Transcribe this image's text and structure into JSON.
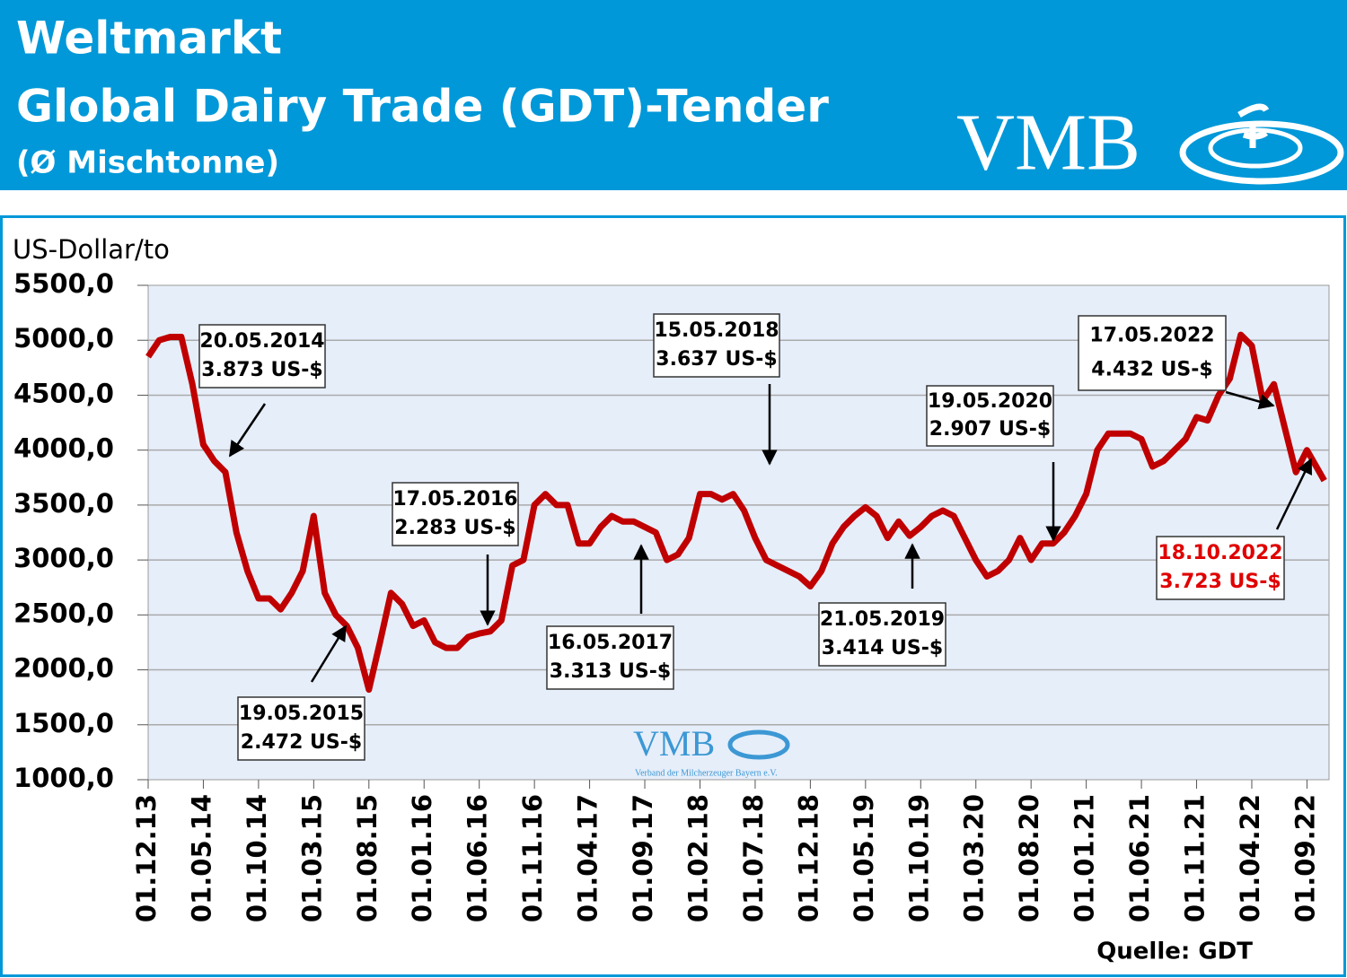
{
  "chart_data": {
    "type": "line",
    "title": "Weltmarkt",
    "subtitle": "Global Dairy Trade (GDT)-Tender",
    "subtitle2": "(Ø Mischtonne)",
    "logo": "VMB",
    "watermark": "VMB",
    "watermark_sub": "Verband der Milcherzeuger Bayern e.V.",
    "y_label": "US-Dollar/to",
    "source": "Quelle: GDT",
    "ylim": [
      1000,
      5500
    ],
    "yticks": [
      {
        "value": 5500,
        "label": "5500,0"
      },
      {
        "value": 5000,
        "label": "5000,0"
      },
      {
        "value": 4500,
        "label": "4500,0"
      },
      {
        "value": 4000,
        "label": "4000,0"
      },
      {
        "value": 3500,
        "label": "3500,0"
      },
      {
        "value": 3000,
        "label": "3000,0"
      },
      {
        "value": 2500,
        "label": "2500,0"
      },
      {
        "value": 2000,
        "label": "2000,0"
      },
      {
        "value": 1500,
        "label": "1500,0"
      },
      {
        "value": 1000,
        "label": "1000,0"
      }
    ],
    "grid": true,
    "xlim": [
      "01.12.13",
      "01.11.22"
    ],
    "xticks": [
      "01.12.13",
      "01.05.14",
      "01.10.14",
      "01.03.15",
      "01.08.15",
      "01.01.16",
      "01.06.16",
      "01.11.16",
      "01.04.17",
      "01.09.17",
      "01.02.18",
      "01.07.18",
      "01.12.18",
      "01.05.19",
      "01.10.19",
      "01.03.20",
      "01.08.20",
      "01.01.21",
      "01.06.21",
      "01.11.21",
      "01.04.22",
      "01.09.22"
    ],
    "series": [
      {
        "name": "GDT",
        "color": "#c00000",
        "x": [
          "01.12.13",
          "01.01.14",
          "01.02.14",
          "01.03.14",
          "01.04.14",
          "01.05.14",
          "01.06.14",
          "01.07.14",
          "01.08.14",
          "01.09.14",
          "01.10.14",
          "01.11.14",
          "01.12.14",
          "01.01.15",
          "01.02.15",
          "01.03.15",
          "01.04.15",
          "01.05.15",
          "01.06.15",
          "01.07.15",
          "01.08.15",
          "01.09.15",
          "01.10.15",
          "01.11.15",
          "01.12.15",
          "01.01.16",
          "01.02.16",
          "01.03.16",
          "01.04.16",
          "01.05.16",
          "01.06.16",
          "01.07.16",
          "01.08.16",
          "01.09.16",
          "01.10.16",
          "01.11.16",
          "01.12.16",
          "01.01.17",
          "01.02.17",
          "01.03.17",
          "01.04.17",
          "01.05.17",
          "01.06.17",
          "01.07.17",
          "01.08.17",
          "01.09.17",
          "01.10.17",
          "01.11.17",
          "01.12.17",
          "01.01.18",
          "01.02.18",
          "01.03.18",
          "01.04.18",
          "01.05.18",
          "01.06.18",
          "01.07.18",
          "01.08.18",
          "01.09.18",
          "01.10.18",
          "01.11.18",
          "01.12.18",
          "01.01.19",
          "01.02.19",
          "01.03.19",
          "01.04.19",
          "01.05.19",
          "01.06.19",
          "01.07.19",
          "01.08.19",
          "01.09.19",
          "01.10.19",
          "01.11.19",
          "01.12.19",
          "01.01.20",
          "01.02.20",
          "01.03.20",
          "01.04.20",
          "01.05.20",
          "01.06.20",
          "01.07.20",
          "01.08.20",
          "01.09.20",
          "01.10.20",
          "01.11.20",
          "01.12.20",
          "01.01.21",
          "01.02.21",
          "01.03.21",
          "01.04.21",
          "01.05.21",
          "01.06.21",
          "01.07.21",
          "01.08.21",
          "01.09.21",
          "01.10.21",
          "01.11.21",
          "01.12.21",
          "01.01.22",
          "01.02.22",
          "01.03.22",
          "01.04.22",
          "01.05.22",
          "01.06.22",
          "01.07.22",
          "01.08.22",
          "01.09.22",
          "18.10.22"
        ],
        "values": [
          4850,
          5000,
          5030,
          5030,
          4600,
          4050,
          3900,
          3800,
          3250,
          2900,
          2650,
          2650,
          2550,
          2700,
          2900,
          3400,
          2700,
          2500,
          2400,
          2200,
          1820,
          2250,
          2700,
          2600,
          2400,
          2450,
          2250,
          2200,
          2200,
          2300,
          2330,
          2350,
          2450,
          2950,
          3000,
          3500,
          3600,
          3500,
          3500,
          3150,
          3150,
          3300,
          3400,
          3350,
          3350,
          3300,
          3250,
          3000,
          3050,
          3200,
          3600,
          3600,
          3550,
          3600,
          3450,
          3200,
          3000,
          2950,
          2900,
          2850,
          2760,
          2900,
          3150,
          3300,
          3400,
          3480,
          3400,
          3200,
          3350,
          3220,
          3300,
          3400,
          3450,
          3400,
          3200,
          3000,
          2850,
          2900,
          3000,
          3200,
          3000,
          3150,
          3150,
          3250,
          3400,
          3600,
          4000,
          4150,
          4150,
          4150,
          4100,
          3850,
          3900,
          4000,
          4100,
          4300,
          4270,
          4500,
          4650,
          5050,
          4950,
          4450,
          4600,
          4200,
          3800,
          4000,
          3723
        ]
      }
    ],
    "annotations": [
      {
        "date": "20.05.2014",
        "value": "3.873 US-$",
        "color": "#000000"
      },
      {
        "date": "19.05.2015",
        "value": "2.472 US-$",
        "color": "#000000"
      },
      {
        "date": "17.05.2016",
        "value": "2.283 US-$",
        "color": "#000000"
      },
      {
        "date": "16.05.2017",
        "value": "3.313 US-$",
        "color": "#000000"
      },
      {
        "date": "15.05.2018",
        "value": "3.637 US-$",
        "color": "#000000"
      },
      {
        "date": "21.05.2019",
        "value": "3.414 US-$",
        "color": "#000000"
      },
      {
        "date": "19.05.2020",
        "value": "2.907 US-$",
        "color": "#000000"
      },
      {
        "date": "17.05.2022",
        "value": "4.432 US-$",
        "color": "#000000"
      },
      {
        "date": "18.10.2022",
        "value": "3.723 US-$",
        "color": "#e00000"
      }
    ]
  }
}
